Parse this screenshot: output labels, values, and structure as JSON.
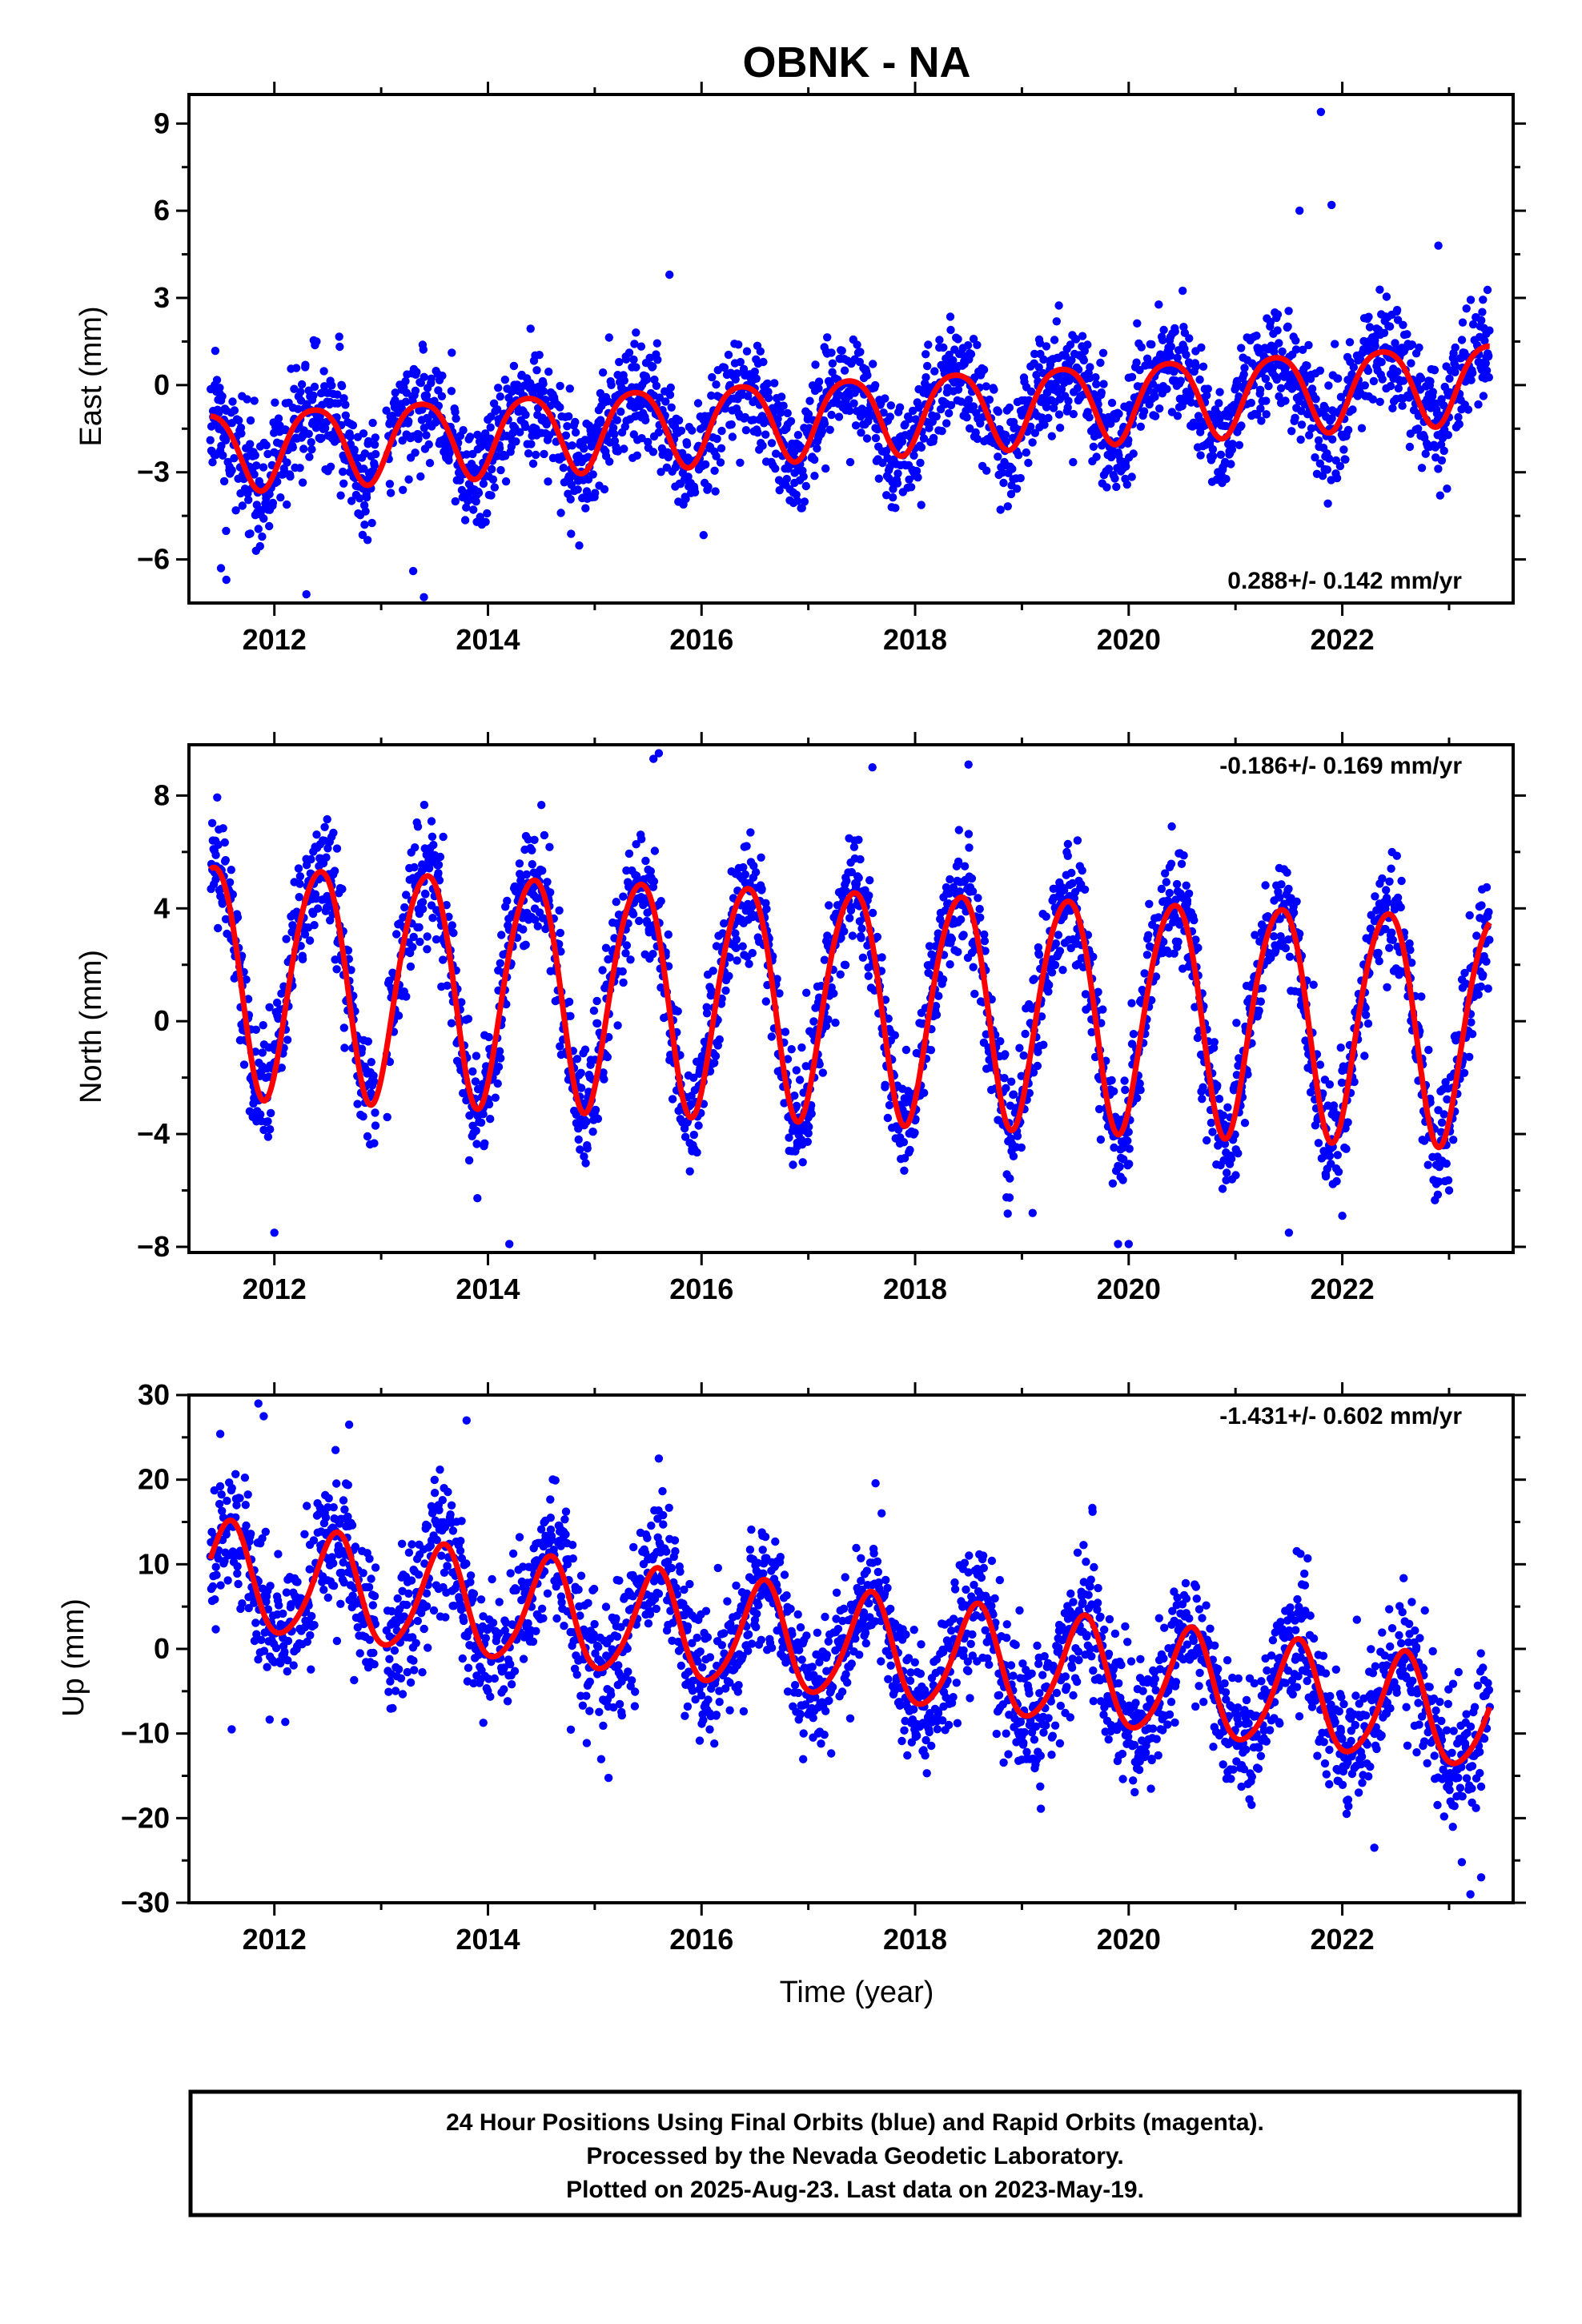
{
  "title": "OBNK - NA",
  "x_axis_label": "Time (year)",
  "footer": {
    "line1": "24 Hour Positions Using Final Orbits (blue) and Rapid Orbits (magenta).",
    "line2": "Processed by the Nevada Geodetic Laboratory.",
    "line3": "Plotted on 2025-Aug-23. Last data on 2023-May-19."
  },
  "colors": {
    "observations": "#0000ff",
    "model": "#ff0000",
    "axes": "#000000"
  },
  "chart_data": [
    {
      "type": "scatter",
      "component": "east",
      "ylabel": "East (mm)",
      "rate_label": "0.288+/- 0.142 mm/yr",
      "rate_placement": "bottom-right",
      "xlim": [
        2011.2,
        2023.6
      ],
      "ylim": [
        -7.5,
        10
      ],
      "yticks": [
        -6,
        -3,
        0,
        3,
        6,
        9
      ],
      "yticklabels": [
        "−6",
        "−3",
        "0",
        "3",
        "6",
        "9"
      ],
      "xticks": [
        2012,
        2014,
        2016,
        2018,
        2020,
        2022
      ],
      "xticklabels": [
        "2012",
        "2014",
        "2016",
        "2018",
        "2020",
        "2022"
      ],
      "model": {
        "start": 2011.4,
        "end": 2023.38,
        "offset": -2.2,
        "rate": 0.2,
        "ref": 2011.4,
        "sin_amp": 0.95,
        "cos_amp": -0.95,
        "semi_amp": 0.2
      },
      "scatter": {
        "noise": 0.95,
        "step_days": 1.5,
        "seed": 11
      },
      "outliers": [
        [
          2011.5,
          -6.3
        ],
        [
          2011.55,
          -6.7
        ],
        [
          2012.3,
          -7.2
        ],
        [
          2013.4,
          -7.3
        ],
        [
          2013.3,
          -6.4
        ],
        [
          2021.8,
          9.4
        ],
        [
          2021.9,
          6.2
        ],
        [
          2021.6,
          6.0
        ],
        [
          2015.7,
          3.8
        ],
        [
          2022.9,
          4.8
        ]
      ]
    },
    {
      "type": "scatter",
      "component": "north",
      "ylabel": "North (mm)",
      "rate_label": "-0.186+/- 0.169 mm/yr",
      "rate_placement": "top-right",
      "xlim": [
        2011.2,
        2023.6
      ],
      "ylim": [
        -8.2,
        9.8
      ],
      "yticks": [
        -8,
        -4,
        0,
        4,
        8
      ],
      "yticklabels": [
        "−8",
        "−4",
        "0",
        "4",
        "8"
      ],
      "xticks": [
        2012,
        2014,
        2016,
        2018,
        2020,
        2022
      ],
      "xticklabels": [
        "2012",
        "2014",
        "2016",
        "2018",
        "2020",
        "2022"
      ],
      "model": {
        "start": 2011.4,
        "end": 2023.38,
        "offset": 1.7,
        "rate": -0.15,
        "ref": 2011.4,
        "sin_amp": 2.1,
        "cos_amp": -3.5,
        "semi_amp": 0.4
      },
      "scatter": {
        "noise": 1.05,
        "step_days": 1.5,
        "seed": 23
      },
      "outliers": [
        [
          2015.6,
          9.5
        ],
        [
          2015.55,
          9.3
        ],
        [
          2017.6,
          9.0
        ],
        [
          2018.5,
          9.1
        ],
        [
          2014.2,
          -7.9
        ],
        [
          2012.0,
          -7.5
        ],
        [
          2019.1,
          -6.8
        ],
        [
          2019.9,
          -7.9
        ],
        [
          2020.0,
          -7.9
        ],
        [
          2021.5,
          -7.5
        ],
        [
          2022.0,
          -6.9
        ],
        [
          2023.0,
          -6.0
        ]
      ]
    },
    {
      "type": "scatter",
      "component": "up",
      "ylabel": "Up (mm)",
      "rate_label": "-1.431+/- 0.602 mm/yr",
      "rate_placement": "top-right",
      "xlim": [
        2011.2,
        2023.6
      ],
      "ylim": [
        -30,
        30
      ],
      "yticks": [
        -30,
        -20,
        -10,
        0,
        10,
        20,
        30
      ],
      "yticklabels": [
        "−30",
        "−20",
        "−10",
        "0",
        "10",
        "20",
        "30"
      ],
      "xticks": [
        2012,
        2014,
        2016,
        2018,
        2020,
        2022
      ],
      "xticklabels": [
        "2012",
        "2014",
        "2016",
        "2018",
        "2020",
        "2022"
      ],
      "model": {
        "start": 2011.4,
        "end": 2023.38,
        "offset": 8.5,
        "rate": -1.4,
        "ref": 2011.4,
        "sin_amp": -2.8,
        "cos_amp": -5.6,
        "semi_amp": 0.8
      },
      "scatter": {
        "noise": 4.0,
        "step_days": 1.5,
        "seed": 37
      },
      "outliers": [
        [
          2011.85,
          29.0
        ],
        [
          2011.9,
          27.5
        ],
        [
          2012.7,
          26.5
        ],
        [
          2013.8,
          27.0
        ],
        [
          2023.2,
          -29.0
        ],
        [
          2023.3,
          -27.0
        ],
        [
          2022.3,
          -23.5
        ],
        [
          2011.6,
          -9.5
        ],
        [
          2015.6,
          22.5
        ]
      ]
    }
  ]
}
